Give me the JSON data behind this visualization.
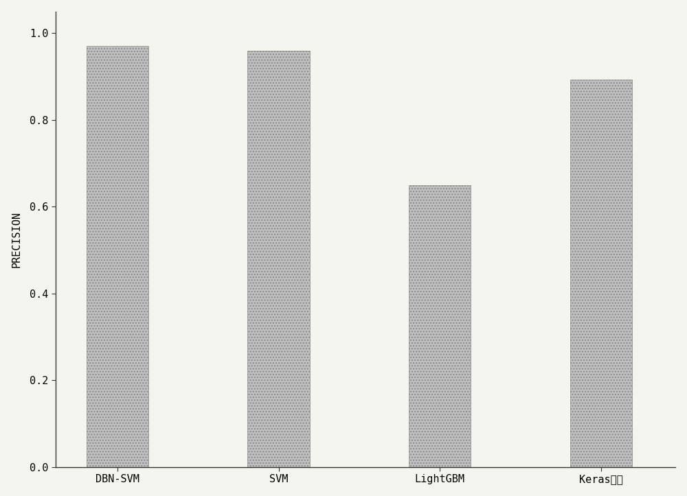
{
  "categories": [
    "DBN-SVM",
    "SVM",
    "LightGBM",
    "Keras模型"
  ],
  "values": [
    0.97,
    0.96,
    0.65,
    0.893
  ],
  "bar_color": "#c0c0c0",
  "bar_edgecolor": "#888888",
  "hatch": "....",
  "ylabel": "PRECISION",
  "ylim": [
    0.0,
    1.05
  ],
  "yticks": [
    0.0,
    0.2,
    0.4,
    0.6,
    0.8,
    1.0
  ],
  "ytick_labels": [
    "0.0",
    "0.2",
    "0.4",
    "0.6",
    "0.8",
    "1.0"
  ],
  "background_color": "#f5f5f0",
  "bar_width": 0.5,
  "ylabel_fontsize": 11,
  "tick_fontsize": 11,
  "spine_color": "#333333",
  "bar_positions": [
    0.5,
    1.8,
    3.1,
    4.4
  ],
  "xlim": [
    0.0,
    5.0
  ]
}
